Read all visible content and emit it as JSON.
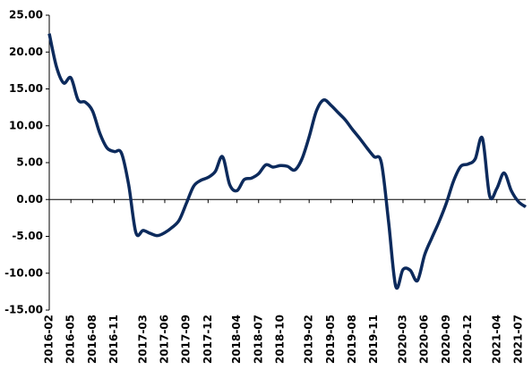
{
  "chart_data": {
    "type": "line",
    "categories": [
      "2016-02",
      null,
      null,
      "2016-05",
      null,
      null,
      "2016-08",
      null,
      null,
      "2016-11",
      null,
      null,
      null,
      "2017-03",
      null,
      null,
      "2017-06",
      null,
      null,
      "2017-09",
      null,
      null,
      "2017-12",
      null,
      null,
      null,
      "2018-04",
      null,
      null,
      "2018-07",
      null,
      null,
      "2018-10",
      null,
      null,
      null,
      "2019-02",
      null,
      null,
      "2019-05",
      null,
      null,
      "2019-08",
      null,
      null,
      "2019-11",
      null,
      null,
      null,
      "2020-03",
      null,
      null,
      "2020-06",
      null,
      null,
      "2020-09",
      null,
      null,
      "2020-12",
      null,
      null,
      null,
      "2021-04",
      null,
      null,
      "2021-07",
      null
    ],
    "series": [
      {
        "color": "#0c2a5c",
        "values": [
          22.5,
          18.0,
          15.8,
          16.5,
          13.5,
          13.2,
          12.0,
          9.0,
          7.0,
          6.5,
          6.3,
          2.0,
          -4.5,
          -4.2,
          -4.6,
          -4.9,
          -4.5,
          -3.8,
          -2.8,
          -0.5,
          1.8,
          2.6,
          3.0,
          3.8,
          5.8,
          2.0,
          1.2,
          2.7,
          2.9,
          3.5,
          4.7,
          4.4,
          4.6,
          4.5,
          4.0,
          5.5,
          8.5,
          12.0,
          13.5,
          12.8,
          11.8,
          10.8,
          9.5,
          8.3,
          7.0,
          5.8,
          5.0,
          -3.0,
          -11.8,
          -9.5,
          -9.6,
          -11.0,
          -7.5,
          -5.2,
          -3.0,
          -0.5,
          2.5,
          4.5,
          4.8,
          5.5,
          8.3,
          0.5,
          1.5,
          3.6,
          1.2,
          -0.3,
          -1.0
        ]
      }
    ],
    "ylim": [
      -15,
      25
    ],
    "yticks": [
      {
        "value": -15,
        "label": "-15.00"
      },
      {
        "value": -10,
        "label": "-10.00"
      },
      {
        "value": -5,
        "label": "-5.00"
      },
      {
        "value": 0,
        "label": "0.00"
      },
      {
        "value": 5,
        "label": "5.00"
      },
      {
        "value": 10,
        "label": "10.00"
      },
      {
        "value": 15,
        "label": "15.00"
      },
      {
        "value": 20,
        "label": "20.00"
      },
      {
        "value": 25,
        "label": "25.00"
      }
    ],
    "grid": false
  }
}
